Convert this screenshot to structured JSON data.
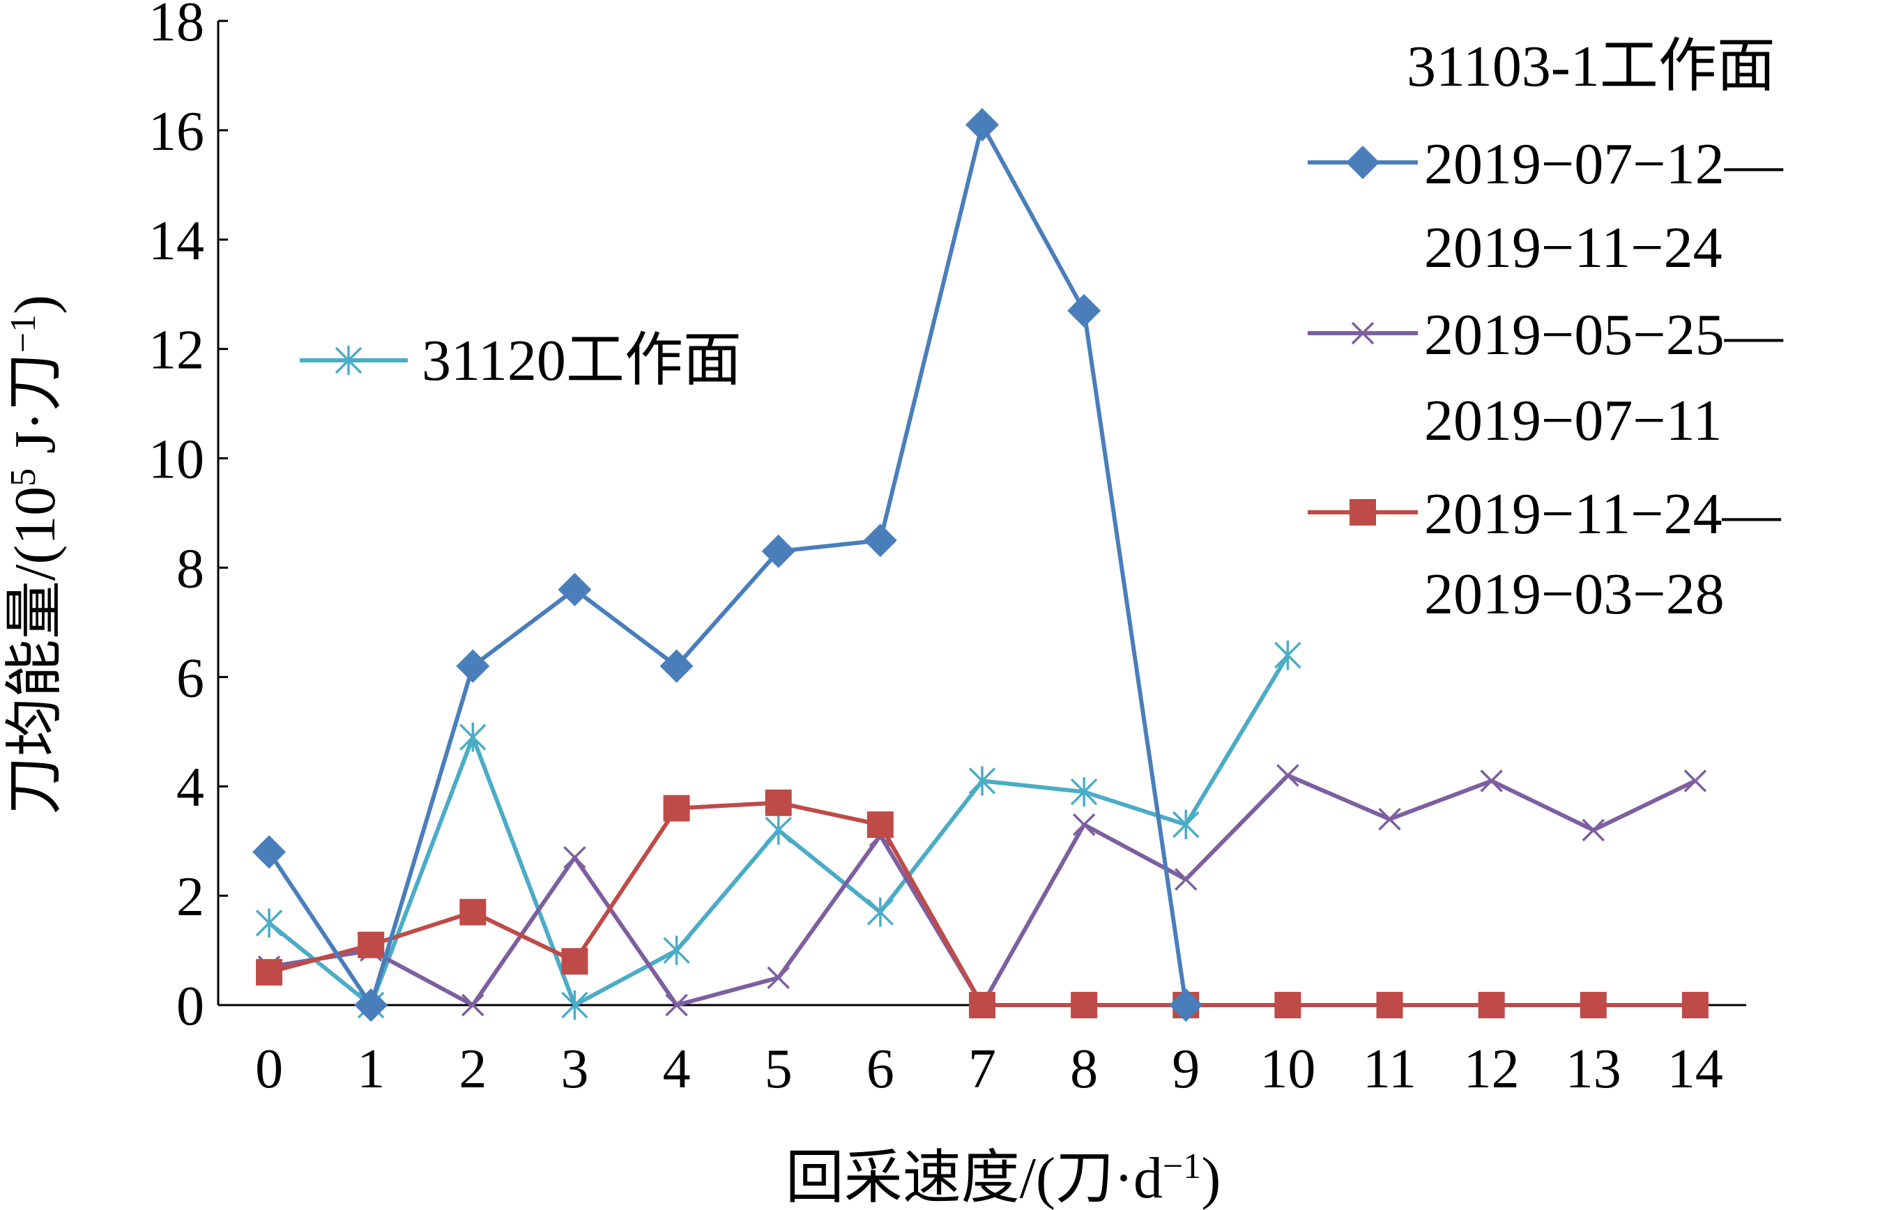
{
  "chart_data": {
    "type": "line",
    "x": [
      0,
      1,
      2,
      3,
      4,
      5,
      6,
      7,
      8,
      9,
      10,
      11,
      12,
      13,
      14
    ],
    "xlim": [
      -0.5,
      14.5
    ],
    "ylim": [
      0,
      18
    ],
    "x_ticks": [
      "0",
      "1",
      "2",
      "3",
      "4",
      "5",
      "6",
      "7",
      "8",
      "9",
      "10",
      "11",
      "12",
      "13",
      "14"
    ],
    "y_ticks": [
      "0",
      "2",
      "4",
      "6",
      "8",
      "10",
      "12",
      "14",
      "16",
      "18"
    ],
    "xlabel": {
      "main": "回采速度/(刀·d",
      "sup": "−1",
      "close": ")"
    },
    "ylabel": {
      "main": "刀均能量/(10",
      "sup1": "5",
      "mid": " J·刀",
      "sup2": "−1",
      "close": ")"
    },
    "grid": false,
    "legend": {
      "group_title": "31103-1工作面",
      "entries": [
        {
          "series": 0,
          "line1": "2019−07−12—",
          "line2": "2019−11−24"
        },
        {
          "series": 1,
          "line1": "2019−05−25—",
          "line2": "2019−07−11"
        },
        {
          "series": 2,
          "line1": "2019−11−24—",
          "line2": "2019−03−28"
        }
      ],
      "separate_entry": {
        "series": 3,
        "label": "31120工作面"
      }
    },
    "series": [
      {
        "name": "2019−07−12—2019−11−24",
        "color": "#4a7ebb",
        "marker": "diamond",
        "x": [
          0,
          1,
          2,
          3,
          4,
          5,
          6,
          7,
          8,
          9
        ],
        "values": [
          2.8,
          0.0,
          6.2,
          7.6,
          6.2,
          8.3,
          8.5,
          16.1,
          12.7,
          0.0
        ]
      },
      {
        "name": "2019−05−25—2019−07−11",
        "color": "#7d5fa0",
        "marker": "x",
        "x": [
          0,
          1,
          2,
          3,
          4,
          5,
          6,
          7,
          8,
          9,
          10,
          11,
          12,
          13,
          14
        ],
        "values": [
          0.7,
          1.0,
          0.0,
          2.7,
          0.0,
          0.5,
          3.1,
          0.0,
          3.3,
          2.3,
          4.2,
          3.4,
          4.1,
          3.2,
          4.1
        ]
      },
      {
        "name": "2019−11−24—2019−03−28",
        "color": "#be4b48",
        "marker": "square",
        "x": [
          0,
          1,
          2,
          3,
          4,
          5,
          6,
          7,
          8,
          9,
          10,
          11,
          12,
          13,
          14
        ],
        "values": [
          0.6,
          1.1,
          1.7,
          0.8,
          3.6,
          3.7,
          3.3,
          0.0,
          0.0,
          0.0,
          0.0,
          0.0,
          0.0,
          0.0,
          0.0
        ]
      },
      {
        "name": "31120工作面",
        "color": "#4bacc6",
        "marker": "asterisk",
        "x": [
          0,
          1,
          2,
          3,
          4,
          5,
          6,
          7,
          8,
          9,
          10
        ],
        "values": [
          1.5,
          0.0,
          4.9,
          0.0,
          1.0,
          3.2,
          1.7,
          4.1,
          3.9,
          3.3,
          6.4
        ]
      }
    ]
  }
}
